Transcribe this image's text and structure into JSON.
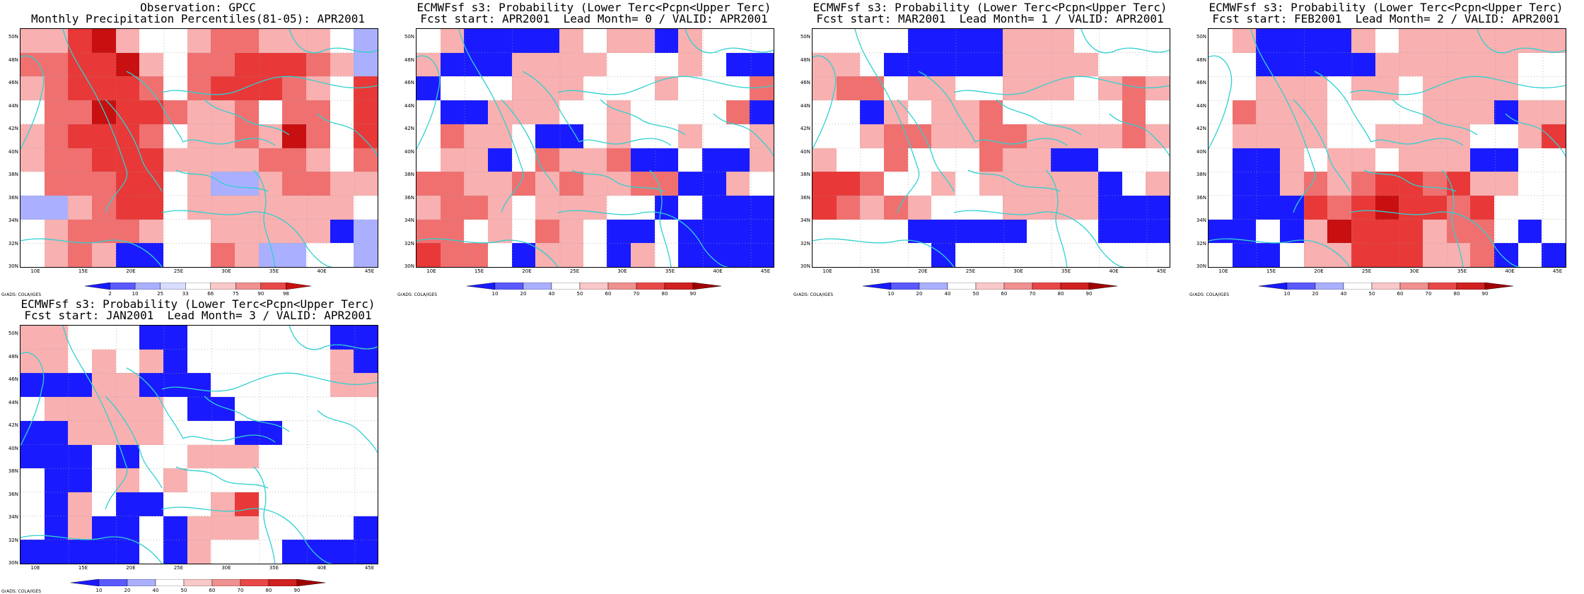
{
  "colors": {
    "strong_blue": "#1a1aff",
    "light_blue": "#aab0ff",
    "light_red": "#f9b0b0",
    "mid_red": "#f07070",
    "red": "#e83838",
    "dark_red": "#c81010",
    "coast": "#30d0d0"
  },
  "credit": "GrADS: COLA/IGES",
  "lat_labels": [
    "50N",
    "48N",
    "46N",
    "44N",
    "42N",
    "40N",
    "38N",
    "36N",
    "34N",
    "32N",
    "30N"
  ],
  "lon_labels": [
    "10E",
    "15E",
    "20E",
    "25E",
    "30E",
    "35E",
    "40E",
    "45E"
  ],
  "panels": [
    {
      "title_line1": "Observation: GPCC",
      "title_line2": "Monthly Precipitation Percentiles(81-05): APR2001",
      "colorbar_labels": [
        "2",
        "10",
        "25",
        "33",
        "66",
        "75",
        "90",
        "98"
      ],
      "legend_type": "percentile"
    },
    {
      "title_line1": "ECMWFsf s3: Probability (Lower Terc<Pcpn<Upper Terc)",
      "title_line2": "Fcst start: APR2001  Lead Month= 0 / VALID: APR2001",
      "colorbar_labels": [
        "10",
        "20",
        "40",
        "50",
        "60",
        "70",
        "80",
        "90"
      ],
      "legend_type": "probability"
    },
    {
      "title_line1": "ECMWFsf s3: Probability (Lower Terc<Pcpn<Upper Terc)",
      "title_line2": "Fcst start: MAR2001  Lead Month= 1 / VALID: APR2001",
      "colorbar_labels": [
        "10",
        "20",
        "40",
        "50",
        "60",
        "70",
        "80",
        "90"
      ],
      "legend_type": "probability"
    },
    {
      "title_line1": "ECMWFsf s3: Probability (Lower Terc<Pcpn<Upper Terc)",
      "title_line2": "Fcst start: FEB2001  Lead Month= 2 / VALID: APR2001",
      "colorbar_labels": [
        "10",
        "20",
        "40",
        "50",
        "60",
        "70",
        "80",
        "90"
      ],
      "legend_type": "probability"
    },
    {
      "title_line1": "ECMWFsf s3: Probability (Lower Terc<Pcpn<Upper Terc)",
      "title_line2": "Fcst start: JAN2001  Lead Month= 3 / VALID: APR2001",
      "colorbar_labels": [
        "10",
        "20",
        "40",
        "50",
        "60",
        "70",
        "80",
        "90"
      ],
      "legend_type": "probability"
    }
  ]
}
